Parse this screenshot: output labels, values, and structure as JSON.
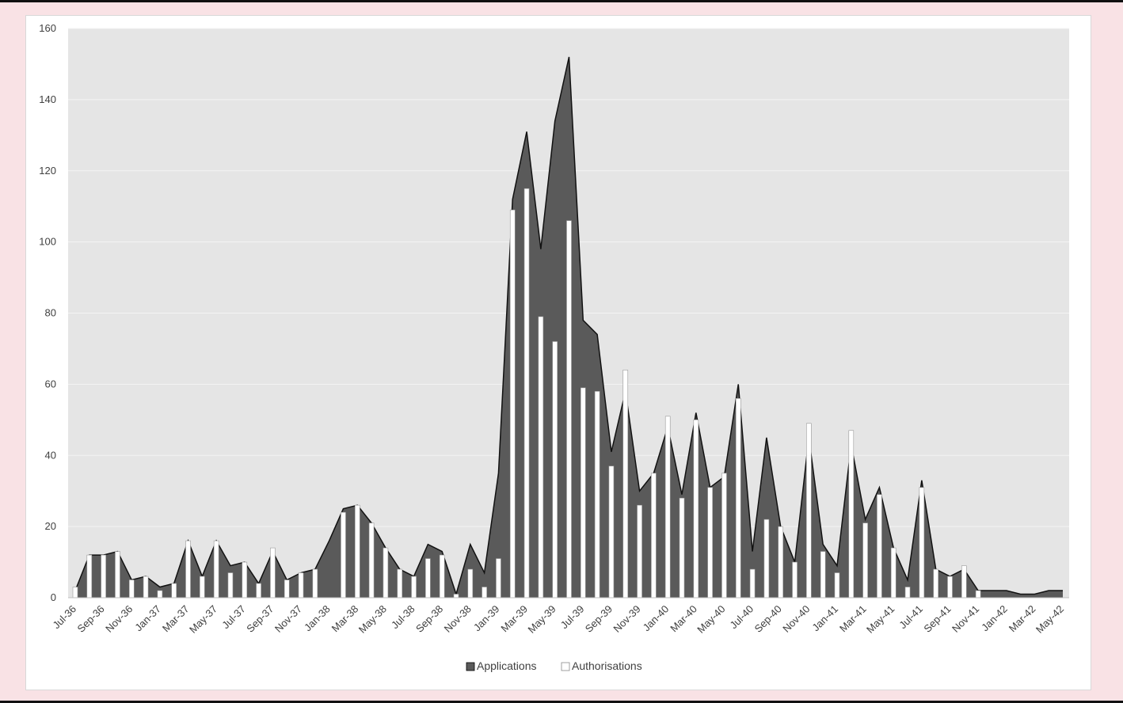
{
  "chart_data": {
    "type": "area",
    "title": "",
    "xlabel": "",
    "ylabel": "",
    "ylim": [
      0,
      160
    ],
    "yticks": [
      0,
      20,
      40,
      60,
      80,
      100,
      120,
      140,
      160
    ],
    "grid": true,
    "legend_position": "bottom",
    "x": [
      "Jul-36",
      "Aug-36",
      "Sep-36",
      "Oct-36",
      "Nov-36",
      "Dec-36",
      "Jan-37",
      "Feb-37",
      "Mar-37",
      "Apr-37",
      "May-37",
      "Jun-37",
      "Jul-37",
      "Aug-37",
      "Sep-37",
      "Oct-37",
      "Nov-37",
      "Dec-37",
      "Jan-38",
      "Feb-38",
      "Mar-38",
      "Apr-38",
      "May-38",
      "Jun-38",
      "Jul-38",
      "Aug-38",
      "Sep-38",
      "Oct-38",
      "Nov-38",
      "Dec-38",
      "Jan-39",
      "Feb-39",
      "Mar-39",
      "Apr-39",
      "May-39",
      "Jun-39",
      "Jul-39",
      "Aug-39",
      "Sep-39",
      "Oct-39",
      "Nov-39",
      "Dec-39",
      "Jan-40",
      "Feb-40",
      "Mar-40",
      "Apr-40",
      "May-40",
      "Jun-40",
      "Jul-40",
      "Aug-40",
      "Sep-40",
      "Oct-40",
      "Nov-40",
      "Dec-40",
      "Jan-41",
      "Feb-41",
      "Mar-41",
      "Apr-41",
      "May-41",
      "Jun-41",
      "Jul-41",
      "Aug-41",
      "Sep-41",
      "Oct-41",
      "Nov-41",
      "Dec-41",
      "Jan-42",
      "Feb-42",
      "Mar-42",
      "Apr-42",
      "May-42"
    ],
    "x_tick_labels": [
      "Jul-36",
      "Sep-36",
      "Nov-36",
      "Jan-37",
      "Mar-37",
      "May-37",
      "Jul-37",
      "Sep-37",
      "Nov-37",
      "Jan-38",
      "Mar-38",
      "May-38",
      "Jul-38",
      "Sep-38",
      "Nov-38",
      "Jan-39",
      "Mar-39",
      "May-39",
      "Jul-39",
      "Sep-39",
      "Nov-39",
      "Jan-40",
      "Mar-40",
      "May-40",
      "Jul-40",
      "Sep-40",
      "Nov-40",
      "Jan-41",
      "Mar-41",
      "May-41",
      "Jul-41",
      "Sep-41",
      "Nov-41",
      "Jan-42",
      "Mar-42",
      "May-42"
    ],
    "series": [
      {
        "name": "Applications",
        "type": "area",
        "color": "#5a5a5a",
        "values": [
          2,
          12,
          12,
          13,
          5,
          6,
          3,
          4,
          16,
          6,
          16,
          9,
          10,
          4,
          13,
          5,
          7,
          8,
          16,
          25,
          26,
          21,
          14,
          8,
          6,
          15,
          13,
          1,
          15,
          7,
          35,
          112,
          131,
          98,
          134,
          152,
          78,
          74,
          41,
          58,
          30,
          35,
          48,
          29,
          52,
          31,
          34,
          60,
          13,
          45,
          20,
          10,
          45,
          15,
          9,
          43,
          22,
          31,
          14,
          5,
          33,
          8,
          6,
          8,
          2,
          2,
          2,
          1,
          1,
          2,
          2
        ]
      },
      {
        "name": "Authorisations",
        "type": "bar",
        "color": "#ffffff",
        "values": [
          3,
          12,
          12,
          13,
          5,
          6,
          2,
          4,
          16,
          6,
          16,
          7,
          10,
          4,
          14,
          5,
          7,
          8,
          null,
          24,
          26,
          21,
          14,
          8,
          6,
          11,
          12,
          1,
          8,
          3,
          11,
          109,
          115,
          79,
          72,
          106,
          59,
          58,
          37,
          64,
          26,
          35,
          51,
          28,
          50,
          31,
          35,
          56,
          8,
          22,
          20,
          10,
          49,
          13,
          7,
          47,
          21,
          29,
          14,
          3,
          31,
          8,
          6,
          9,
          2,
          null,
          null,
          null,
          null,
          null,
          null
        ]
      }
    ]
  },
  "legend": {
    "applications_label": "Applications",
    "authorisations_label": "Authorisations"
  }
}
